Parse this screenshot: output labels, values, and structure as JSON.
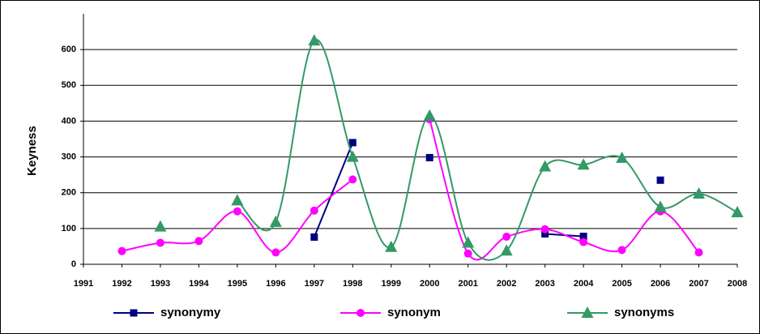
{
  "chart_data": {
    "type": "line",
    "y_label": "Keyness",
    "categories": [
      "1991",
      "1992",
      "1993",
      "1994",
      "1995",
      "1996",
      "1997",
      "1998",
      "1999",
      "2000",
      "2001",
      "2002",
      "2003",
      "2004",
      "2005",
      "2006",
      "2007",
      "2008"
    ],
    "ylim": [
      0,
      700
    ],
    "yticks": [
      0,
      100,
      200,
      300,
      400,
      500,
      600
    ],
    "grid": true,
    "legend": "bottom",
    "series": [
      {
        "name": "synonymy",
        "color": "#000080",
        "marker": "square",
        "smooth": false,
        "values": [
          null,
          null,
          null,
          null,
          null,
          null,
          76,
          340,
          null,
          298,
          null,
          null,
          85,
          78,
          null,
          235,
          null,
          null
        ]
      },
      {
        "name": "synonym",
        "color": "#ff00ff",
        "marker": "circle",
        "smooth": true,
        "values": [
          null,
          37,
          60,
          65,
          148,
          33,
          150,
          237,
          null,
          405,
          30,
          77,
          98,
          62,
          40,
          148,
          33,
          null
        ]
      },
      {
        "name": "synonyms",
        "color": "#339966",
        "marker": "triangle",
        "smooth": true,
        "values": [
          null,
          null,
          105,
          null,
          178,
          118,
          625,
          300,
          48,
          415,
          60,
          38,
          273,
          278,
          297,
          160,
          197,
          145
        ]
      }
    ]
  }
}
